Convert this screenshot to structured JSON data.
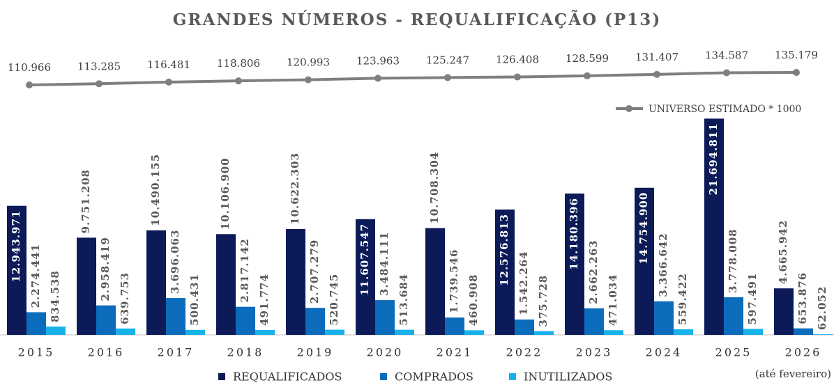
{
  "chart_data": {
    "type": "bar",
    "title": "GRANDES NÚMEROS - REQUALIFICAÇÃO (P13)",
    "categories": [
      "2015",
      "2016",
      "2017",
      "2018",
      "2019",
      "2020",
      "2021",
      "2022",
      "2023",
      "2024",
      "2025",
      "2026"
    ],
    "annotation": "(até fevereiro)",
    "ylim": [
      0,
      22000000
    ],
    "y2lim": [
      80000,
      160000
    ],
    "legend": "bottom",
    "series": [
      {
        "name": "REQUALIFICADOS",
        "color": "#0c1b58",
        "values": [
          12943971,
          9751208,
          10490155,
          10106900,
          10622303,
          11607547,
          10708304,
          12576813,
          14180396,
          14754900,
          21694811,
          4665942
        ],
        "value_labels": [
          "12.943.971",
          "9.751.208",
          "10.490.155",
          "10.106.900",
          "10.622.303",
          "11.607.547",
          "10.708.304",
          "12.576.813",
          "14.180.396",
          "14.754.900",
          "21.694.811",
          "4.665.942"
        ]
      },
      {
        "name": "COMPRADOS",
        "color": "#0b6cbc",
        "values": [
          2274441,
          2958419,
          3696063,
          2817142,
          2707279,
          3484111,
          1739546,
          1542264,
          2662263,
          3366642,
          3778008,
          653876
        ],
        "value_labels": [
          "2.274.441",
          "2.958.419",
          "3.696.063",
          "2.817.142",
          "2.707.279",
          "3.484.111",
          "1.739.546",
          "1.542.264",
          "2.662.263",
          "3.366.642",
          "3.778.008",
          "653.876"
        ]
      },
      {
        "name": "INUTILIZADOS",
        "color": "#17b2ea",
        "values": [
          834538,
          639753,
          500431,
          491774,
          520745,
          513684,
          460908,
          375728,
          471034,
          559422,
          597491,
          62052
        ],
        "value_labels": [
          "834.538",
          "639.753",
          "500.431",
          "491.774",
          "520.745",
          "513.684",
          "460.908",
          "375.728",
          "471.034",
          "559.422",
          "597.491",
          "62.052"
        ]
      },
      {
        "name": "UNIVERSO ESTIMADO * 1000",
        "color": "#7f7f7f",
        "type": "line",
        "axis": "y2",
        "values": [
          110966,
          113285,
          116481,
          118806,
          120993,
          123963,
          125247,
          126408,
          128599,
          131407,
          134587,
          135179
        ],
        "value_labels": [
          "110.966",
          "113.285",
          "116.481",
          "118.806",
          "120.993",
          "123.963",
          "125.247",
          "126.408",
          "128.599",
          "131.407",
          "134.587",
          "135.179"
        ]
      }
    ]
  }
}
